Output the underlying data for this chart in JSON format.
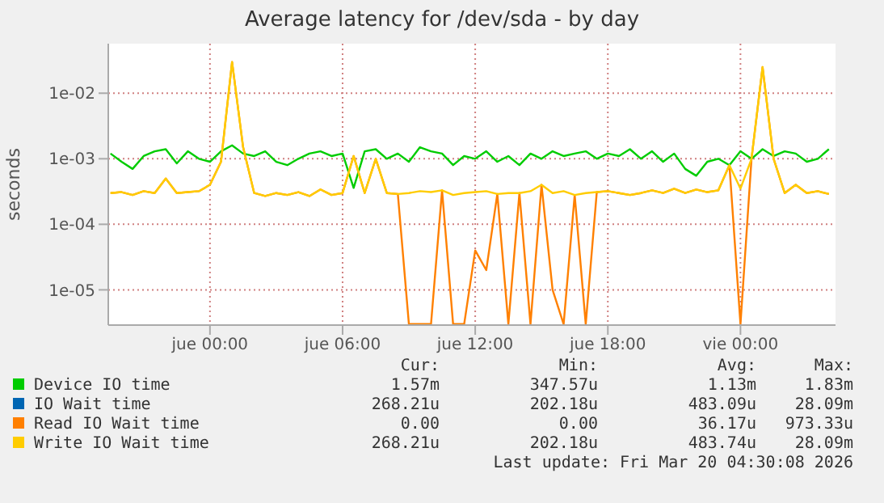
{
  "chart_data": {
    "type": "line",
    "title": "Average latency for /dev/sda - by day",
    "ylabel": "seconds",
    "log": "y",
    "grid": true,
    "legend": "bottom",
    "marker": "none",
    "line_style": "solid",
    "x": [
      "2026-03-18T19:30",
      "2026-03-18T20:00",
      "2026-03-18T20:30",
      "2026-03-18T21:00",
      "2026-03-18T21:30",
      "2026-03-18T22:00",
      "2026-03-18T22:30",
      "2026-03-18T23:00",
      "2026-03-18T23:30",
      "2026-03-19T00:00",
      "2026-03-19T00:30",
      "2026-03-19T01:00",
      "2026-03-19T01:30",
      "2026-03-19T02:00",
      "2026-03-19T02:30",
      "2026-03-19T03:00",
      "2026-03-19T03:30",
      "2026-03-19T04:00",
      "2026-03-19T04:30",
      "2026-03-19T05:00",
      "2026-03-19T05:30",
      "2026-03-19T06:00",
      "2026-03-19T06:30",
      "2026-03-19T07:00",
      "2026-03-19T07:30",
      "2026-03-19T08:00",
      "2026-03-19T08:30",
      "2026-03-19T09:00",
      "2026-03-19T09:30",
      "2026-03-19T10:00",
      "2026-03-19T10:30",
      "2026-03-19T11:00",
      "2026-03-19T11:30",
      "2026-03-19T12:00",
      "2026-03-19T12:30",
      "2026-03-19T13:00",
      "2026-03-19T13:30",
      "2026-03-19T14:00",
      "2026-03-19T14:30",
      "2026-03-19T15:00",
      "2026-03-19T15:30",
      "2026-03-19T16:00",
      "2026-03-19T16:30",
      "2026-03-19T17:00",
      "2026-03-19T17:30",
      "2026-03-19T18:00",
      "2026-03-19T18:30",
      "2026-03-19T19:00",
      "2026-03-19T19:30",
      "2026-03-19T20:00",
      "2026-03-19T20:30",
      "2026-03-19T21:00",
      "2026-03-19T21:30",
      "2026-03-19T22:00",
      "2026-03-19T22:30",
      "2026-03-19T23:00",
      "2026-03-19T23:30",
      "2026-03-20T00:00",
      "2026-03-20T00:30",
      "2026-03-20T01:00",
      "2026-03-20T01:30",
      "2026-03-20T02:00",
      "2026-03-20T02:30",
      "2026-03-20T03:00",
      "2026-03-20T03:30",
      "2026-03-20T04:00"
    ],
    "xlim": [
      "2026-03-18T19:24",
      "2026-03-20T04:18"
    ],
    "xticks": [
      {
        "value": "2026-03-19T00:00",
        "label": "jue 00:00"
      },
      {
        "value": "2026-03-19T06:00",
        "label": "jue 06:00"
      },
      {
        "value": "2026-03-19T12:00",
        "label": "jue 12:00"
      },
      {
        "value": "2026-03-19T18:00",
        "label": "jue 18:00"
      },
      {
        "value": "2026-03-20T00:00",
        "label": "vie 00:00"
      }
    ],
    "ylim": [
      2.9e-06,
      0.057
    ],
    "yticks": [
      {
        "value": 1e-05,
        "label": "1e-05"
      },
      {
        "value": 0.0001,
        "label": "1e-04"
      },
      {
        "value": 0.001,
        "label": "1e-03"
      },
      {
        "value": 0.01,
        "label": "1e-02"
      }
    ],
    "series": [
      {
        "name": "Device IO time",
        "color": "#00cc00",
        "values": [
          0.0012,
          0.0009,
          0.0007,
          0.0011,
          0.0013,
          0.0014,
          0.00085,
          0.0013,
          0.001,
          0.0009,
          0.0013,
          0.0016,
          0.0012,
          0.0011,
          0.0013,
          0.0009,
          0.0008,
          0.001,
          0.0012,
          0.0013,
          0.0011,
          0.0012,
          0.00036,
          0.0013,
          0.0014,
          0.001,
          0.0012,
          0.0009,
          0.0015,
          0.0013,
          0.0012,
          0.0008,
          0.0011,
          0.001,
          0.0013,
          0.0009,
          0.0011,
          0.0008,
          0.0012,
          0.001,
          0.0013,
          0.0011,
          0.0012,
          0.0013,
          0.001,
          0.0012,
          0.0011,
          0.0014,
          0.001,
          0.0013,
          0.0009,
          0.0012,
          0.0007,
          0.00055,
          0.0009,
          0.001,
          0.0008,
          0.0013,
          0.001,
          0.0014,
          0.0011,
          0.0013,
          0.0012,
          0.0009,
          0.001,
          0.0014
        ]
      },
      {
        "name": "IO Wait time",
        "color": "#0066b3",
        "values": [
          null,
          null,
          null,
          null,
          null,
          null,
          null,
          null,
          null,
          null,
          null,
          null,
          null,
          null,
          null,
          null,
          null,
          null,
          null,
          null,
          null,
          null,
          null,
          null,
          null,
          null,
          null,
          null,
          null,
          null,
          null,
          null,
          null,
          null,
          null,
          null,
          null,
          null,
          null,
          null,
          null,
          null,
          null,
          null,
          null,
          null,
          null,
          null,
          null,
          null,
          null,
          null,
          null,
          null,
          null,
          null,
          null,
          null,
          null,
          null,
          null,
          null,
          null,
          null,
          null,
          null
        ]
      },
      {
        "name": "Read IO Wait time",
        "color": "#ff8000",
        "values": [
          0.0003,
          0.00031,
          0.00028,
          0.00032,
          0.0003,
          0.0005,
          0.0003,
          0.00031,
          0.00032,
          0.0004,
          0.0009,
          0.03,
          0.0015,
          0.0003,
          0.00027,
          0.0003,
          0.00028,
          0.00031,
          0.00027,
          0.00034,
          0.00028,
          0.0003,
          0.0011,
          0.0003,
          0.001,
          0.0003,
          0.00029,
          3e-06,
          3e-06,
          3e-06,
          0.00033,
          3e-06,
          3e-06,
          4e-05,
          2e-05,
          0.00029,
          3e-06,
          0.0003,
          3e-06,
          0.0004,
          1e-05,
          3e-06,
          0.00028,
          3e-06,
          0.00031,
          0.00032,
          0.0003,
          0.00028,
          0.0003,
          0.00033,
          0.0003,
          0.00035,
          0.0003,
          0.00034,
          0.00031,
          0.00033,
          0.0008,
          3e-06,
          0.001,
          0.025,
          0.001,
          0.0003,
          0.0004,
          0.0003,
          0.00032,
          0.00029
        ]
      },
      {
        "name": "Write IO Wait time",
        "color": "#ffcc00",
        "values": [
          0.0003,
          0.00031,
          0.00028,
          0.00032,
          0.0003,
          0.0005,
          0.0003,
          0.00031,
          0.00032,
          0.0004,
          0.0009,
          0.03,
          0.0015,
          0.0003,
          0.00027,
          0.0003,
          0.00028,
          0.00031,
          0.00027,
          0.00034,
          0.00028,
          0.0003,
          0.0011,
          0.0003,
          0.001,
          0.0003,
          0.00029,
          0.0003,
          0.00032,
          0.00031,
          0.00033,
          0.00028,
          0.0003,
          0.00031,
          0.00032,
          0.00029,
          0.0003,
          0.0003,
          0.00032,
          0.0004,
          0.0003,
          0.00032,
          0.00028,
          0.0003,
          0.00031,
          0.00032,
          0.0003,
          0.00028,
          0.0003,
          0.00033,
          0.0003,
          0.00035,
          0.0003,
          0.00034,
          0.00031,
          0.00033,
          0.0008,
          0.00035,
          0.001,
          0.025,
          0.001,
          0.0003,
          0.0004,
          0.0003,
          0.00032,
          0.00029
        ]
      }
    ],
    "annotations": [
      "Cur:",
      "Min:",
      "Avg:",
      "Max:",
      "1.57m",
      "347.57u",
      "1.13m",
      "1.83m",
      "268.21u",
      "202.18u",
      "483.09u",
      "28.09m",
      "0.00",
      "0.00",
      "36.17u",
      "973.33u",
      "268.21u",
      "202.18u",
      "483.74u",
      "28.09m",
      "Last update: Fri Mar 20 04:30:08 2026"
    ]
  }
}
